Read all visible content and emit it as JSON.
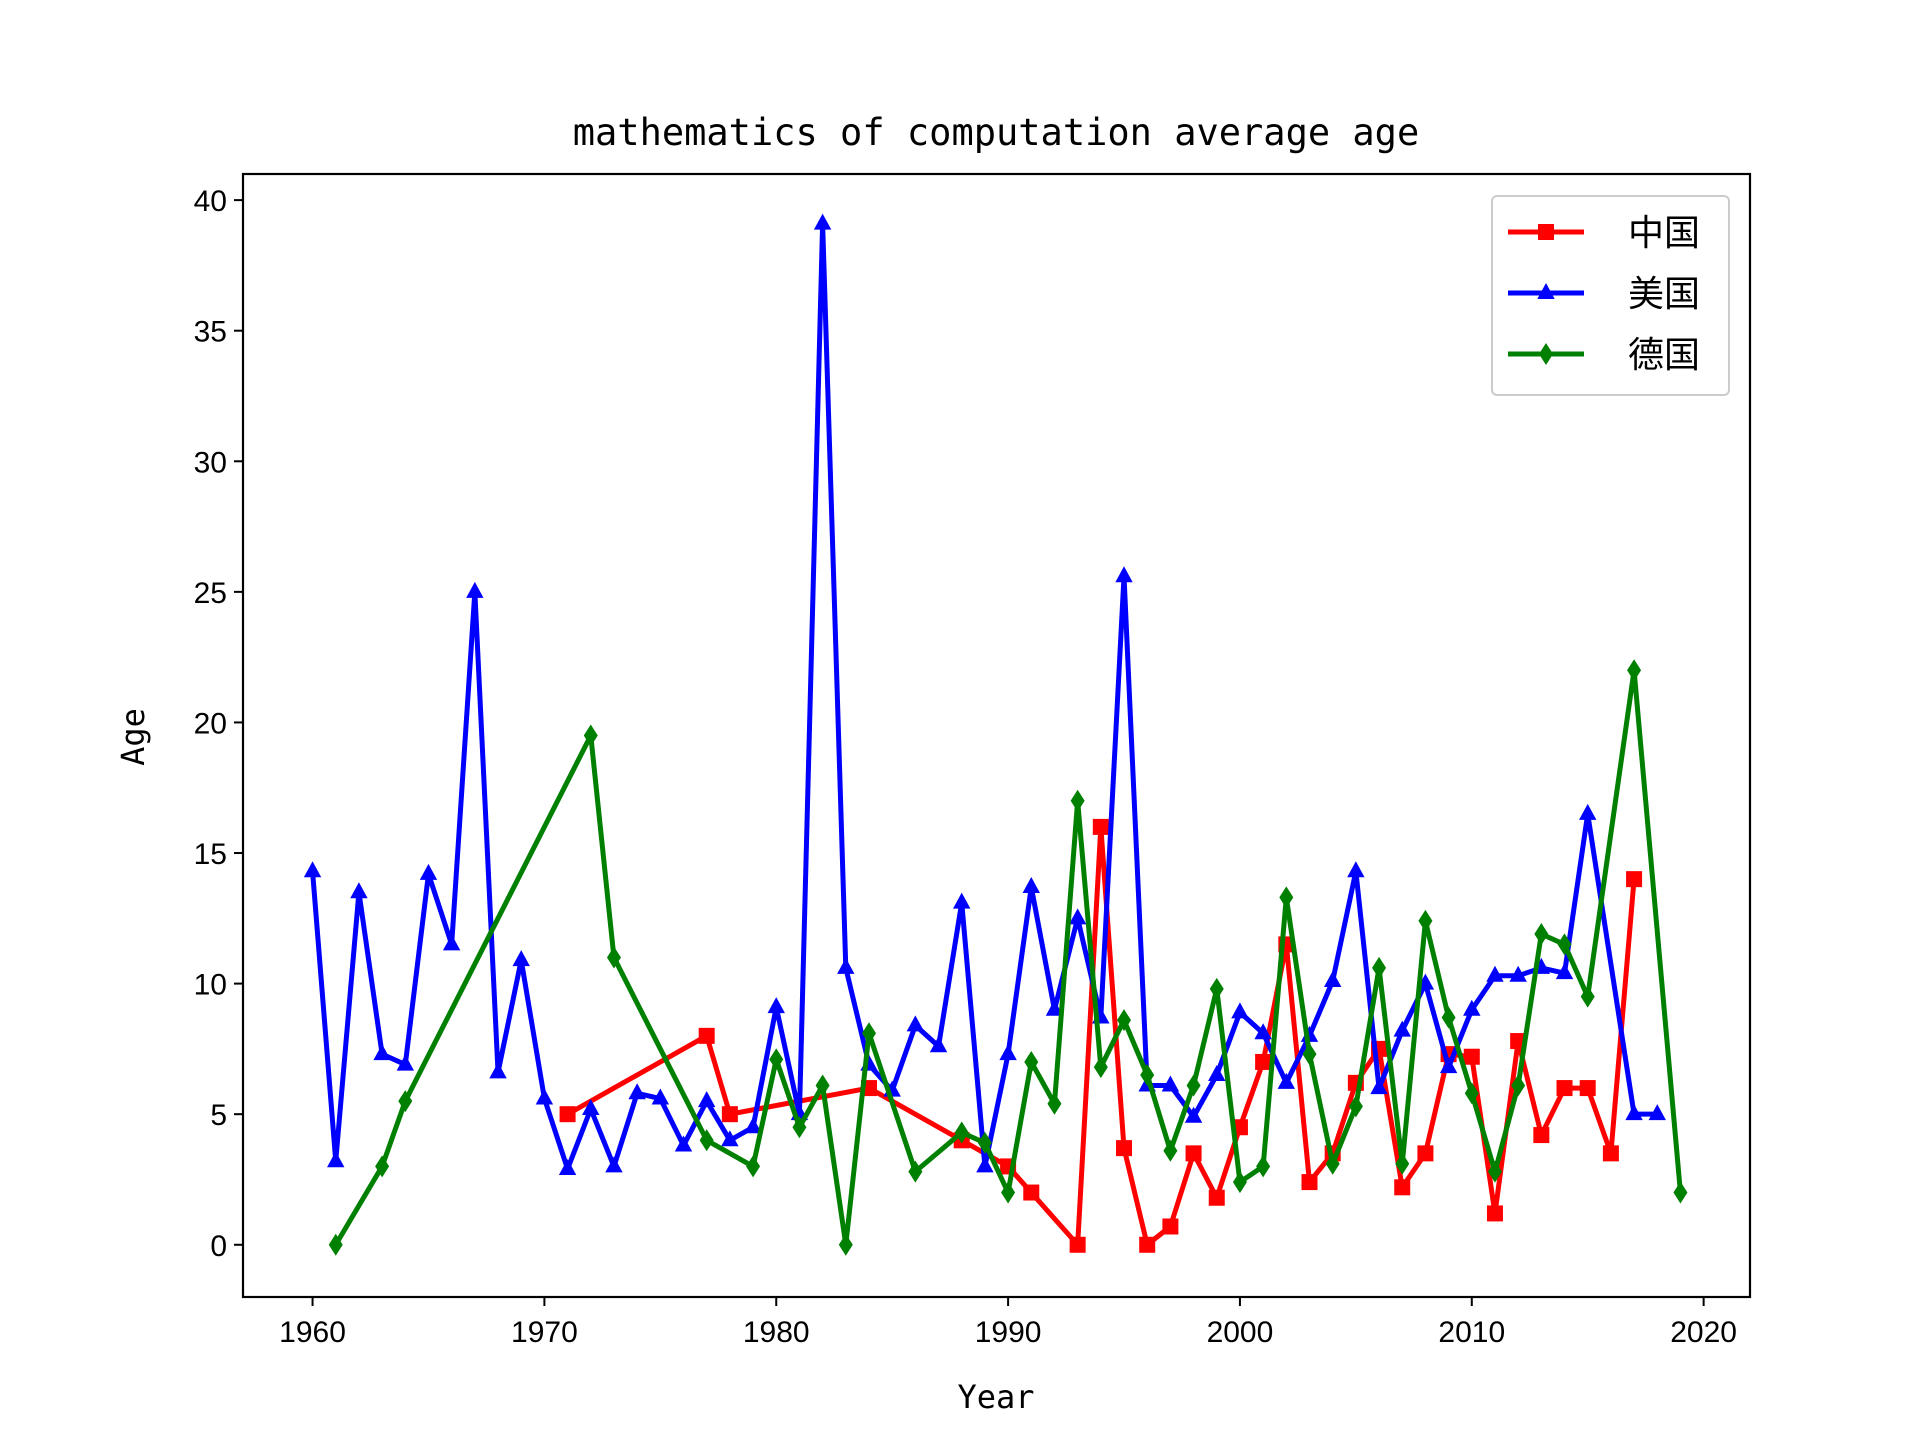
{
  "chart_data": {
    "type": "line",
    "title": "mathematics of computation average age",
    "xlabel": "Year",
    "ylabel": "Age",
    "xlim": [
      1957,
      2022
    ],
    "ylim": [
      -2,
      41
    ],
    "xticks": [
      1960,
      1970,
      1980,
      1990,
      2000,
      2010,
      2020
    ],
    "yticks": [
      0,
      5,
      10,
      15,
      20,
      25,
      30,
      35,
      40
    ],
    "legend_position": "top-right",
    "grid": false,
    "series": [
      {
        "name": "中国",
        "color": "#ff0000",
        "marker": "square",
        "x": [
          1971,
          1977,
          1978,
          1984,
          1988,
          1990,
          1991,
          1993,
          1994,
          1995,
          1996,
          1997,
          1998,
          1999,
          2000,
          2001,
          2002,
          2003,
          2004,
          2005,
          2006,
          2007,
          2008,
          2009,
          2010,
          2011,
          2012,
          2013,
          2014,
          2015,
          2016,
          2017
        ],
        "y": [
          5,
          8,
          5,
          6,
          4,
          3,
          2,
          0,
          16,
          3.7,
          0,
          0.7,
          3.5,
          1.8,
          4.5,
          7,
          11.5,
          2.4,
          3.5,
          6.2,
          7.5,
          2.2,
          3.5,
          7.3,
          7.2,
          1.2,
          7.8,
          4.2,
          6,
          6,
          3.5,
          14
        ]
      },
      {
        "name": "美国",
        "color": "#0000ff",
        "marker": "triangle",
        "x": [
          1960,
          1961,
          1962,
          1963,
          1964,
          1965,
          1966,
          1967,
          1968,
          1969,
          1970,
          1971,
          1972,
          1973,
          1974,
          1975,
          1976,
          1977,
          1978,
          1979,
          1980,
          1981,
          1982,
          1983,
          1984,
          1985,
          1986,
          1987,
          1988,
          1989,
          1990,
          1991,
          1992,
          1993,
          1994,
          1995,
          1996,
          1997,
          1998,
          1999,
          2000,
          2001,
          2002,
          2003,
          2004,
          2005,
          2006,
          2007,
          2008,
          2009,
          2010,
          2011,
          2012,
          2013,
          2014,
          2015,
          2017,
          2018
        ],
        "y": [
          14.3,
          3.2,
          13.5,
          7.3,
          6.9,
          14.2,
          11.5,
          25,
          6.6,
          10.9,
          5.6,
          2.9,
          5.2,
          3.0,
          5.8,
          5.6,
          3.8,
          5.5,
          4.0,
          4.5,
          9.1,
          5.0,
          39.1,
          10.6,
          6.9,
          5.9,
          8.4,
          7.6,
          13.1,
          3.0,
          7.3,
          13.7,
          9.0,
          12.5,
          8.7,
          25.6,
          6.1,
          6.1,
          4.9,
          6.5,
          8.9,
          8.1,
          6.2,
          8.0,
          10.1,
          14.3,
          6.0,
          8.2,
          10.0,
          6.8,
          9.0,
          10.3,
          10.3,
          10.6,
          10.4,
          16.5,
          5.0,
          5.0
        ]
      },
      {
        "name": "德国",
        "color": "#008000",
        "marker": "diamond",
        "x": [
          1961,
          1963,
          1964,
          1972,
          1973,
          1977,
          1979,
          1980,
          1981,
          1982,
          1983,
          1984,
          1986,
          1988,
          1989,
          1990,
          1991,
          1992,
          1993,
          1994,
          1995,
          1996,
          1997,
          1998,
          1999,
          2000,
          2001,
          2002,
          2003,
          2004,
          2005,
          2006,
          2007,
          2008,
          2009,
          2010,
          2011,
          2012,
          2013,
          2014,
          2015,
          2017,
          2019
        ],
        "y": [
          0,
          3.0,
          5.5,
          19.5,
          11.0,
          4.0,
          3.0,
          7.1,
          4.5,
          6.1,
          0,
          8.1,
          2.8,
          4.3,
          3.9,
          2.0,
          7.0,
          5.4,
          17.0,
          6.8,
          8.6,
          6.5,
          3.6,
          6.1,
          9.8,
          2.4,
          3.0,
          13.3,
          7.3,
          3.1,
          5.3,
          10.6,
          3.1,
          12.4,
          8.7,
          5.8,
          2.8,
          6.1,
          11.9,
          11.5,
          9.5,
          22.0,
          2.0
        ]
      }
    ]
  }
}
